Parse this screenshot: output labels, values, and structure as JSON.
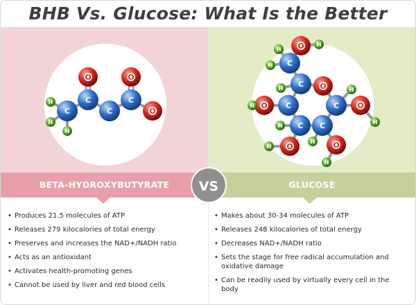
{
  "title": "BHB Vs. Glucose: What Is the Better Fuel?",
  "vs_label": "VS",
  "colors": {
    "left_panel": "#f2d4d6",
    "right_panel": "#e4ebc7",
    "left_band": "#e7a0aa",
    "right_band": "#c7cf9d",
    "carbon_atom": "#2f6fc9",
    "oxygen_atom": "#d8281c",
    "hydrogen_atom": "#5aaa2a"
  },
  "atom_labels": {
    "carbon": "C",
    "oxygen": "O",
    "hydrogen": "H"
  },
  "left": {
    "heading": "BETA-HYDROXYBUTYRATE",
    "facts": [
      "Produces 21.5 molecules of ATP",
      "Releases 279 kilocalories of total energy",
      "Preserves and increases the NAD+/NADH ratio",
      "Acts as an antioxidant",
      "Activates health-promoting genes",
      "Cannot be used by liver and red blood cells"
    ]
  },
  "right": {
    "heading": "GLUCOSE",
    "facts": [
      "Makes about 30-34 molecules of ATP",
      "Releases  248 kilocalories of total energy",
      "Decreases NAD+/NADH ratio",
      "Sets the stage for free radical accumulation and oxidative damage",
      "Can be readily used by virtually every cell in the body"
    ]
  }
}
